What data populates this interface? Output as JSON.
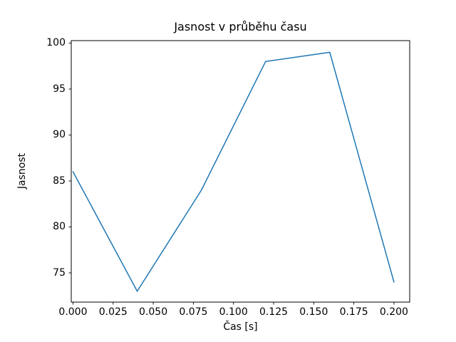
{
  "figure": {
    "background": "#ffffff",
    "text_color": "#000000",
    "frame_color": "#000000"
  },
  "chart_data": {
    "type": "line",
    "title": "Jasnost v průběhu času",
    "xlabel": "Čas [s]",
    "ylabel": "Jasnost",
    "x": [
      0.0,
      0.04,
      0.08,
      0.12,
      0.16,
      0.2
    ],
    "y": [
      86,
      73,
      84,
      98,
      99,
      74
    ],
    "line_color": "#1f77b4",
    "line_width": 1.5,
    "grid": false,
    "legend": "none",
    "xlim": [
      -0.0011,
      0.2098
    ],
    "ylim": [
      71.82,
      100.27
    ],
    "xticks": {
      "values": [
        0.0,
        0.025,
        0.05,
        0.075,
        0.1,
        0.125,
        0.15,
        0.175,
        0.2
      ],
      "labels": [
        "0.000",
        "0.025",
        "0.050",
        "0.075",
        "0.100",
        "0.125",
        "0.150",
        "0.175",
        "0.200"
      ]
    },
    "yticks": {
      "values": [
        75,
        80,
        85,
        90,
        95,
        100
      ],
      "labels": [
        "75",
        "80",
        "85",
        "90",
        "95",
        "100"
      ]
    }
  }
}
